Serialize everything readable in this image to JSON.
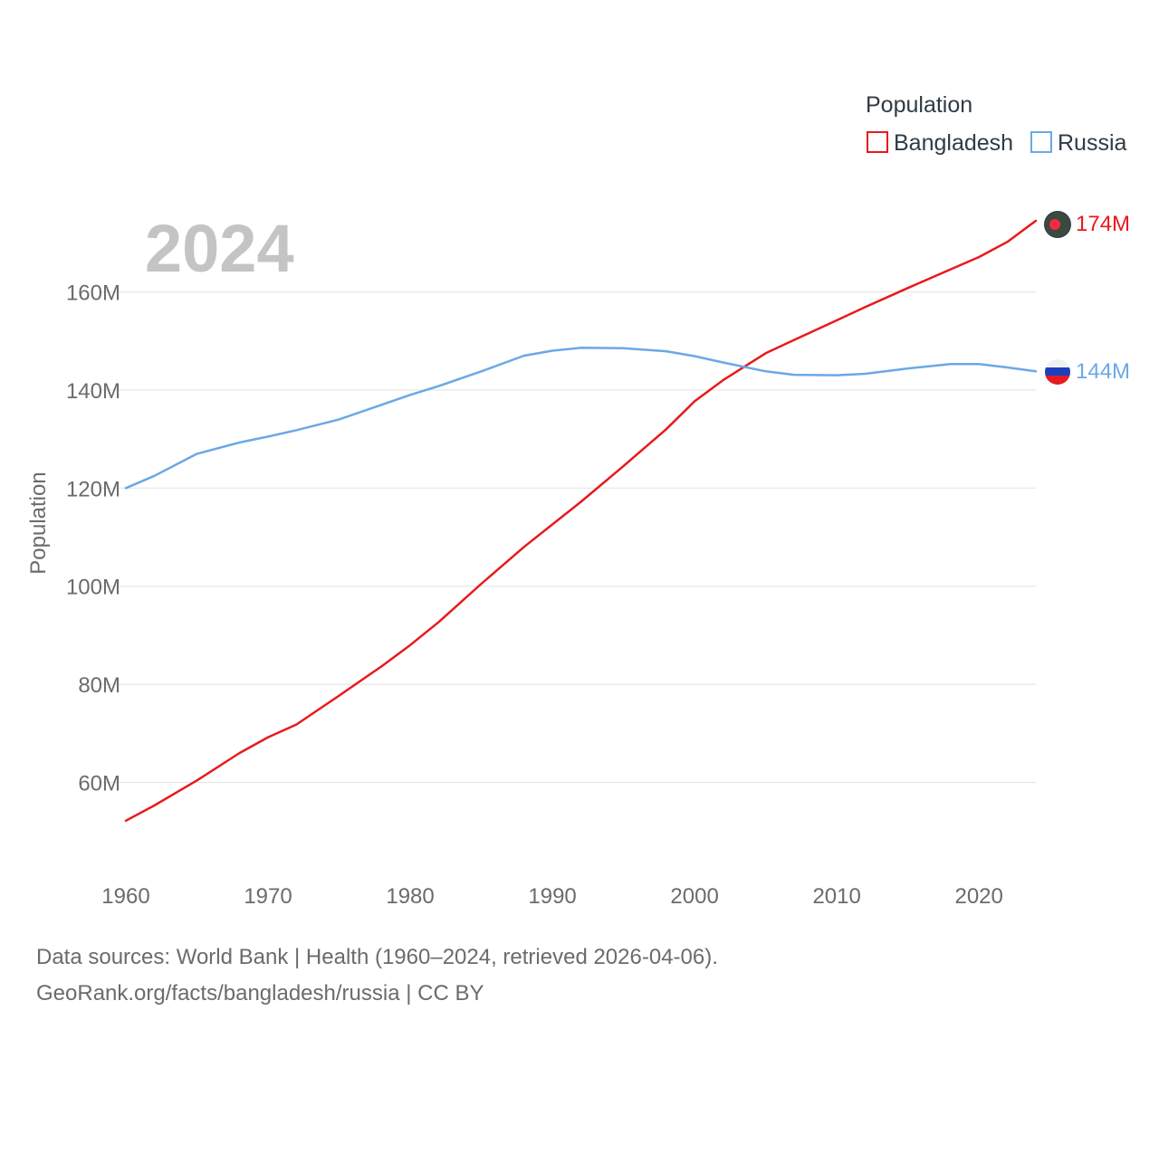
{
  "chart_data": {
    "type": "line",
    "title": "",
    "legend_title": "Population",
    "legend_position": "top-right",
    "year_watermark": "2024",
    "xlabel": "",
    "ylabel": "Population",
    "xlim": [
      1960,
      2024
    ],
    "ylim": [
      50000000,
      175000000
    ],
    "x_ticks": [
      1960,
      1970,
      1980,
      1990,
      2000,
      2010,
      2020
    ],
    "y_ticks": [
      60000000,
      80000000,
      100000000,
      120000000,
      140000000,
      160000000
    ],
    "y_tick_labels": [
      "60M",
      "80M",
      "100M",
      "120M",
      "140M",
      "160M"
    ],
    "grid": true,
    "x": [
      1960,
      1962,
      1965,
      1968,
      1970,
      1972,
      1975,
      1978,
      1980,
      1982,
      1985,
      1988,
      1990,
      1992,
      1995,
      1998,
      2000,
      2002,
      2005,
      2007,
      2010,
      2012,
      2015,
      2018,
      2020,
      2022,
      2024
    ],
    "series": [
      {
        "name": "Bangladesh",
        "color": "#e8191c",
        "end_label": "174M",
        "marker_icon": "bangladesh-flag-icon",
        "values": [
          52200000,
          55300000,
          60400000,
          66000000,
          69200000,
          71800000,
          77700000,
          83700000,
          88000000,
          92700000,
          100500000,
          108000000,
          112600000,
          117200000,
          124500000,
          132000000,
          137700000,
          142000000,
          147500000,
          150200000,
          154200000,
          156900000,
          160800000,
          164600000,
          167100000,
          170200000,
          174500000
        ]
      },
      {
        "name": "Russia",
        "color": "#6ba8e5",
        "end_label": "144M",
        "marker_icon": "russia-flag-icon",
        "values": [
          120000000,
          122500000,
          127000000,
          129300000,
          130500000,
          131800000,
          134000000,
          137000000,
          139000000,
          140800000,
          143800000,
          147000000,
          148000000,
          148600000,
          148500000,
          147900000,
          146900000,
          145600000,
          143800000,
          143100000,
          143000000,
          143300000,
          144400000,
          145300000,
          145300000,
          144600000,
          143800000
        ]
      }
    ]
  },
  "footer": {
    "source": "Data sources: World Bank | Health (1960–2024, retrieved 2026-04-06).",
    "credit": "GeoRank.org/facts/bangladesh/russia | CC BY"
  }
}
